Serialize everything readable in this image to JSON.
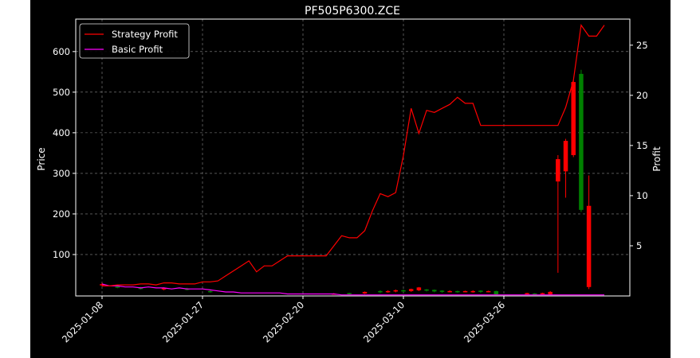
{
  "colors": {
    "background": "#000000",
    "foreground": "#ffffff",
    "grid": "#8c8c8c",
    "strategy_line": "#ff0000",
    "basic_line": "#ff00ff",
    "candle_up": "#ff0000",
    "candle_down": "#008000"
  },
  "chart_data": {
    "type": "candlestick+line",
    "title": "PF505P6300.ZCE",
    "ylabel_left": "Price",
    "ylabel_right": "Profit",
    "grid": true,
    "legend_position": "top-left",
    "x_tick_labels": [
      "2025-01-08",
      "2025-01-27",
      "2025-02-20",
      "2025-03-10",
      "2025-03-26"
    ],
    "x_tick_index": [
      0,
      13,
      26,
      39,
      52
    ],
    "y_left_ticks": [
      100,
      200,
      300,
      400,
      500,
      600
    ],
    "y_left_lim": [
      -2,
      680
    ],
    "y_right_ticks": [
      5,
      10,
      15,
      20,
      25
    ],
    "y_right_lim": [
      0.0,
      27.6
    ],
    "series": [
      {
        "name": "Strategy Profit",
        "axis": "right",
        "values": [
          1.0,
          1.0,
          1.1,
          1.1,
          1.1,
          1.2,
          1.2,
          1.1,
          1.3,
          1.3,
          1.2,
          1.2,
          1.2,
          1.4,
          1.4,
          1.5,
          2.0,
          2.5,
          3.0,
          3.5,
          2.4,
          3.0,
          3.0,
          3.5,
          4.0,
          4.0,
          4.0,
          4.0,
          4.0,
          4.0,
          5.0,
          6.0,
          5.8,
          5.8,
          6.5,
          8.5,
          10.2,
          9.9,
          10.3,
          14.0,
          18.7,
          16.2,
          18.5,
          18.3,
          18.7,
          19.1,
          19.8,
          19.2,
          19.2,
          17.0,
          17.0,
          17.0,
          17.0,
          17.0,
          17.0,
          17.0,
          17.0,
          17.0,
          17.0,
          17.0,
          18.8,
          21.5,
          27.0,
          25.9,
          25.9,
          27.0
        ]
      },
      {
        "name": "Basic Profit",
        "axis": "right",
        "values": [
          1.2,
          1.0,
          1.0,
          0.9,
          0.9,
          0.8,
          0.9,
          0.8,
          0.8,
          0.7,
          0.8,
          0.7,
          0.7,
          0.7,
          0.6,
          0.5,
          0.4,
          0.4,
          0.3,
          0.3,
          0.3,
          0.3,
          0.3,
          0.3,
          0.2,
          0.2,
          0.2,
          0.2,
          0.2,
          0.2,
          0.2,
          0.1,
          0.1,
          0.1,
          0.1,
          0.1,
          0.1,
          0.1,
          0.1,
          0.1,
          0.1,
          0.1,
          0.1,
          0.1,
          0.1,
          0.1,
          0.1,
          0.1,
          0.1,
          0.1,
          0.1,
          0.1,
          0.1,
          0.1,
          0.1,
          0.1,
          0.1,
          0.1,
          0.1,
          0.1,
          0.1,
          0.1,
          0.1,
          0.1,
          0.1,
          0.1
        ]
      }
    ],
    "candles": [
      {
        "i": 0,
        "open": 24,
        "close": 27,
        "high": 30,
        "low": 22
      },
      {
        "i": 2,
        "open": 21,
        "close": 19,
        "high": 23,
        "low": 17
      },
      {
        "i": 5,
        "open": 18,
        "close": 16,
        "high": 20,
        "low": 14
      },
      {
        "i": 8,
        "open": 14,
        "close": 17,
        "high": 19,
        "low": 12
      },
      {
        "i": 11,
        "open": 16,
        "close": 14,
        "high": 18,
        "low": 12
      },
      {
        "i": 14,
        "open": 10,
        "close": 8,
        "high": 12,
        "low": 6
      },
      {
        "i": 30,
        "open": 2,
        "close": 4,
        "high": 5,
        "low": 1
      },
      {
        "i": 32,
        "open": 5,
        "close": 3,
        "high": 6,
        "low": 2
      },
      {
        "i": 34,
        "open": 4,
        "close": 8,
        "high": 9,
        "low": 3
      },
      {
        "i": 36,
        "open": 10,
        "close": 7,
        "high": 12,
        "low": 5
      },
      {
        "i": 37,
        "open": 8,
        "close": 10,
        "high": 12,
        "low": 6
      },
      {
        "i": 38,
        "open": 9,
        "close": 12,
        "high": 14,
        "low": 7
      },
      {
        "i": 39,
        "open": 12,
        "close": 10,
        "high": 14,
        "low": 8
      },
      {
        "i": 40,
        "open": 10,
        "close": 15,
        "high": 16,
        "low": 8
      },
      {
        "i": 41,
        "open": 12,
        "close": 19,
        "high": 20,
        "low": 10
      },
      {
        "i": 42,
        "open": 14,
        "close": 11,
        "high": 15,
        "low": 9
      },
      {
        "i": 43,
        "open": 13,
        "close": 9,
        "high": 14,
        "low": 7
      },
      {
        "i": 44,
        "open": 11,
        "close": 8,
        "high": 12,
        "low": 6
      },
      {
        "i": 45,
        "open": 9,
        "close": 10,
        "high": 12,
        "low": 7
      },
      {
        "i": 46,
        "open": 10,
        "close": 8,
        "high": 11,
        "low": 6
      },
      {
        "i": 47,
        "open": 9,
        "close": 10,
        "high": 11,
        "low": 7
      },
      {
        "i": 48,
        "open": 8,
        "close": 10,
        "high": 12,
        "low": 6
      },
      {
        "i": 49,
        "open": 11,
        "close": 8,
        "high": 12,
        "low": 6
      },
      {
        "i": 50,
        "open": 9,
        "close": 10,
        "high": 11,
        "low": 7
      },
      {
        "i": 51,
        "open": 10,
        "close": 2,
        "high": 11,
        "low": 1
      },
      {
        "i": 55,
        "open": 3,
        "close": 5,
        "high": 6,
        "low": 2
      },
      {
        "i": 56,
        "open": 4,
        "close": 3,
        "high": 5,
        "low": 2
      },
      {
        "i": 57,
        "open": 3,
        "close": 5,
        "high": 6,
        "low": 2
      },
      {
        "i": 58,
        "open": 2,
        "close": 8,
        "high": 10,
        "low": 1
      },
      {
        "i": 59,
        "open": 280,
        "close": 335,
        "high": 345,
        "low": 55
      },
      {
        "i": 60,
        "open": 305,
        "close": 380,
        "high": 385,
        "low": 240
      },
      {
        "i": 61,
        "open": 345,
        "close": 525,
        "high": 530,
        "low": 340
      },
      {
        "i": 62,
        "open": 545,
        "close": 210,
        "high": 555,
        "low": 205
      },
      {
        "i": 63,
        "open": 20,
        "close": 220,
        "high": 295,
        "low": 15
      }
    ]
  }
}
